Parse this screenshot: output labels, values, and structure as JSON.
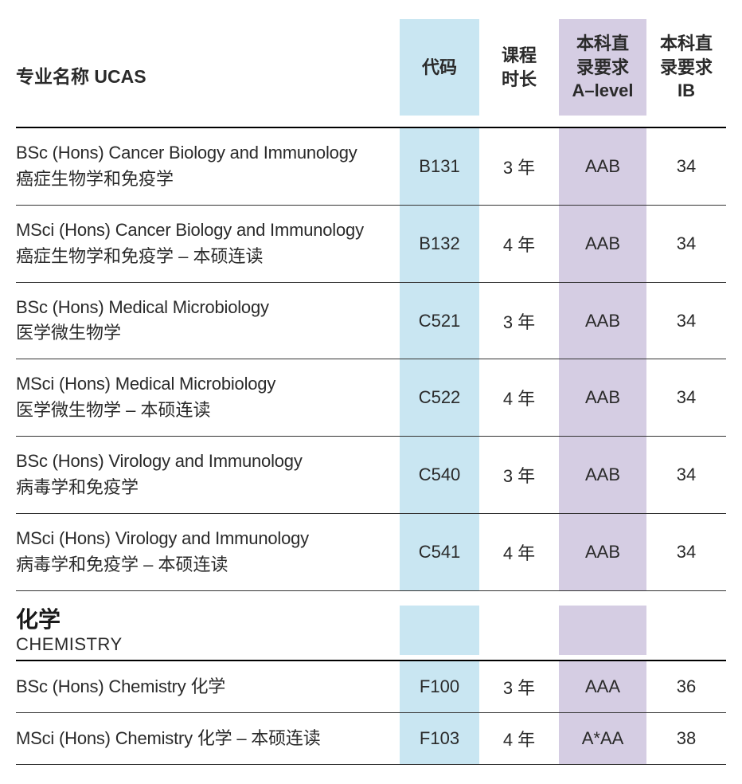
{
  "headers": {
    "name": "专业名称 UCAS",
    "code": "代码",
    "duration": "课程\n时长",
    "alevel": "本科直\n录要求\nA–level",
    "ib": "本科直\n录要求\nIB"
  },
  "colors": {
    "code_bg": "#c9e6f2",
    "alevel_bg": "#d5cde3",
    "border": "#333333",
    "text": "#2a2a2a"
  },
  "rows": [
    {
      "en": "BSc (Hons) Cancer Biology and Immunology",
      "zh": "癌症生物学和免疫学",
      "code": "B131",
      "duration": "3 年",
      "alevel": "AAB",
      "ib": "34"
    },
    {
      "en": "MSci (Hons) Cancer Biology and Immunology",
      "zh": "癌症生物学和免疫学 – 本硕连读",
      "code": "B132",
      "duration": "4 年",
      "alevel": "AAB",
      "ib": "34"
    },
    {
      "en": "BSc (Hons) Medical Microbiology",
      "zh": "医学微生物学",
      "code": "C521",
      "duration": "3 年",
      "alevel": "AAB",
      "ib": "34"
    },
    {
      "en": "MSci (Hons) Medical Microbiology",
      "zh": "医学微生物学 – 本硕连读",
      "code": "C522",
      "duration": "4 年",
      "alevel": "AAB",
      "ib": "34"
    },
    {
      "en": "BSc (Hons) Virology and Immunology",
      "zh": "病毒学和免疫学",
      "code": "C540",
      "duration": "3 年",
      "alevel": "AAB",
      "ib": "34"
    },
    {
      "en": "MSci (Hons) Virology and Immunology",
      "zh": "病毒学和免疫学 – 本硕连读",
      "code": "C541",
      "duration": "4 年",
      "alevel": "AAB",
      "ib": "34"
    }
  ],
  "section": {
    "zh": "化学",
    "en": "CHEMISTRY"
  },
  "rows2": [
    {
      "en": "BSc (Hons) Chemistry 化学",
      "zh": "",
      "code": "F100",
      "duration": "3 年",
      "alevel": "AAA",
      "ib": "36"
    },
    {
      "en": "MSci (Hons) Chemistry 化学 – 本硕连读",
      "zh": "",
      "code": "F103",
      "duration": "4 年",
      "alevel": "A*AA",
      "ib": "38"
    }
  ],
  "layout": {
    "col_name_flex": 1,
    "col_code_width": 100,
    "col_duration_width": 100,
    "col_alevel_width": 110,
    "col_ib_width": 100,
    "body_font_size": 22,
    "header_font_size": 22,
    "section_zh_font_size": 28
  }
}
